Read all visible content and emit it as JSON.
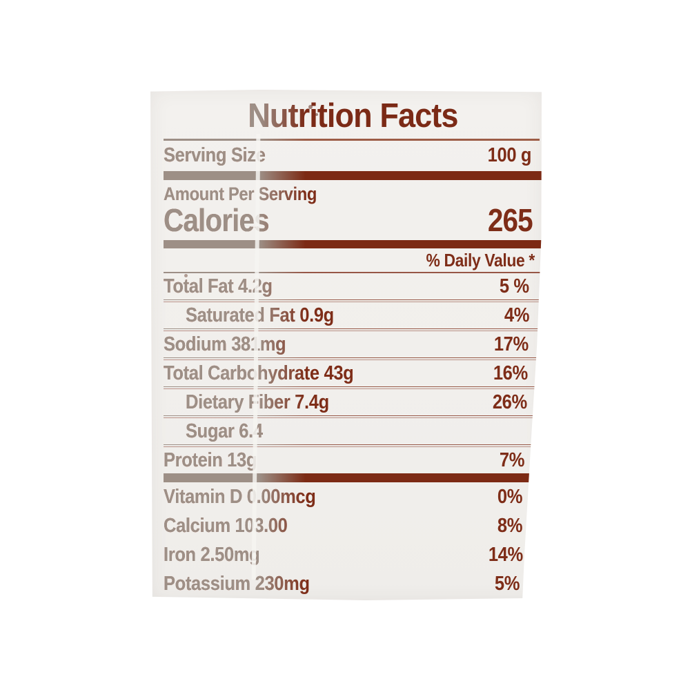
{
  "label": {
    "title": "Nutrition Facts",
    "serving_size_label": "Serving Size",
    "serving_size_value": "100 g",
    "amount_per_serving": "Amount Per Serving",
    "calories_label": "Calories",
    "calories_value": "265",
    "daily_value_header": "% Daily Value *",
    "rows": [
      {
        "name": "Total Fat 4.2g",
        "dv": "5 %"
      },
      {
        "name": "Saturated Fat 0.9g",
        "dv": "4%"
      },
      {
        "name": "Sodium 381mg",
        "dv": "17%"
      },
      {
        "name": "Total Carbohydrate 43g",
        "dv": "16%"
      },
      {
        "name": "Dietary Fiber 7.4g",
        "dv": "26%"
      },
      {
        "name": "Sugar 6.4",
        "dv": ""
      },
      {
        "name": "Protein 13g",
        "dv": "7%"
      }
    ],
    "micronutrients": [
      {
        "name": "Vitamin D 0.00mcg",
        "dv": "0%"
      },
      {
        "name": "Calcium 103.00",
        "dv": "8%"
      },
      {
        "name": "Iron 2.50mg",
        "dv": "14%"
      },
      {
        "name": "Potassium 230mg",
        "dv": "5%"
      }
    ],
    "colors": {
      "ink": "#7e2d18",
      "faded_ink": "#9d8f86",
      "paper": "#f2f0ed",
      "background": "#ffffff"
    }
  }
}
